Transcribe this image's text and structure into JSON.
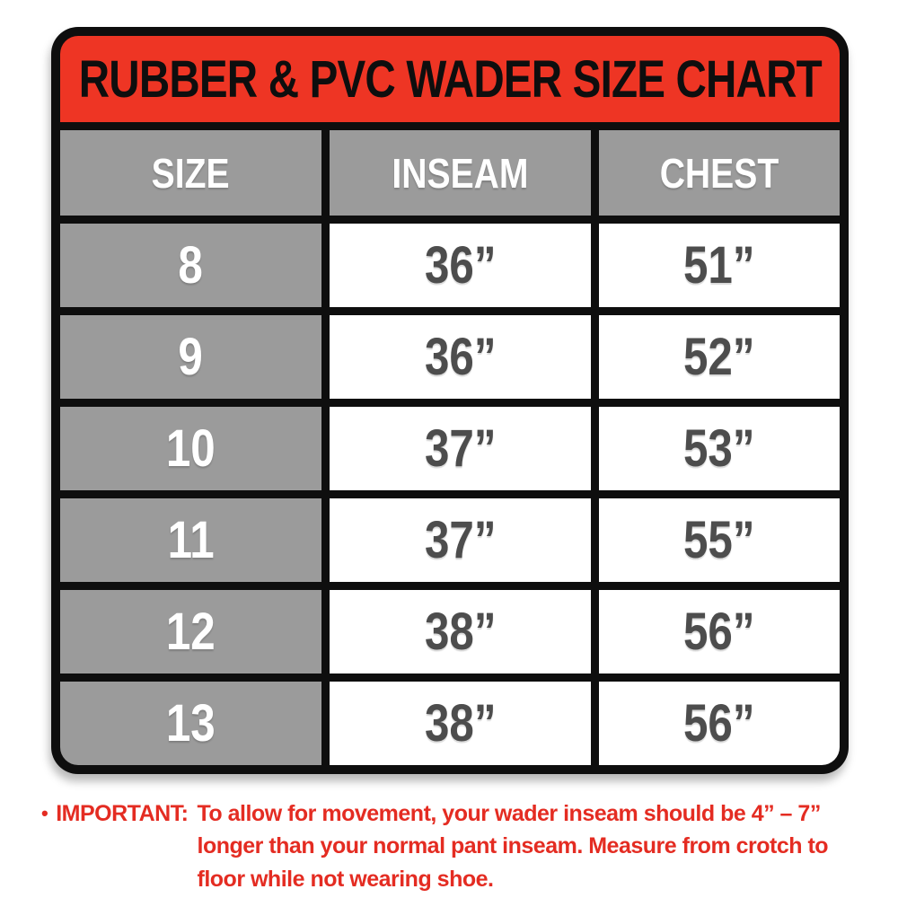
{
  "title": "RUBBER & PVC WADER SIZE CHART",
  "table": {
    "headers": {
      "size": "SIZE",
      "inseam": "INSEAM",
      "chest": "CHEST"
    },
    "rows": [
      {
        "size": "8",
        "inseam": "36”",
        "chest": "51”"
      },
      {
        "size": "9",
        "inseam": "36”",
        "chest": "52”"
      },
      {
        "size": "10",
        "inseam": "37”",
        "chest": "53”"
      },
      {
        "size": "11",
        "inseam": "37”",
        "chest": "55”"
      },
      {
        "size": "12",
        "inseam": "38”",
        "chest": "56”"
      },
      {
        "size": "13",
        "inseam": "38”",
        "chest": "56”"
      }
    ]
  },
  "note": {
    "bullet": "•",
    "label": "IMPORTANT:",
    "text": "To allow for movement, your wader inseam should be 4” – 7” longer than your normal pant inseam. Measure from crotch to floor while not wearing shoe."
  },
  "colors": {
    "title_band_red": "#ee3524",
    "note_red": "#e42c22",
    "gray_cell": "#9b9b9b",
    "value_text_gray": "#4d4d4d",
    "border_black": "#0e0e0e",
    "white": "#ffffff"
  },
  "chart_data": {
    "type": "table",
    "title": "RUBBER & PVC WADER SIZE CHART",
    "columns": [
      "SIZE",
      "INSEAM",
      "CHEST"
    ],
    "rows": [
      [
        "8",
        "36\"",
        "51\""
      ],
      [
        "9",
        "36\"",
        "52\""
      ],
      [
        "10",
        "37\"",
        "53\""
      ],
      [
        "11",
        "37\"",
        "55\""
      ],
      [
        "12",
        "38\"",
        "56\""
      ],
      [
        "13",
        "38\"",
        "56\""
      ]
    ],
    "units": "inches",
    "footnote": "IMPORTANT: To allow for movement, your wader inseam should be 4\" – 7\" longer than your normal pant inseam. Measure from crotch to floor while not wearing shoe."
  }
}
